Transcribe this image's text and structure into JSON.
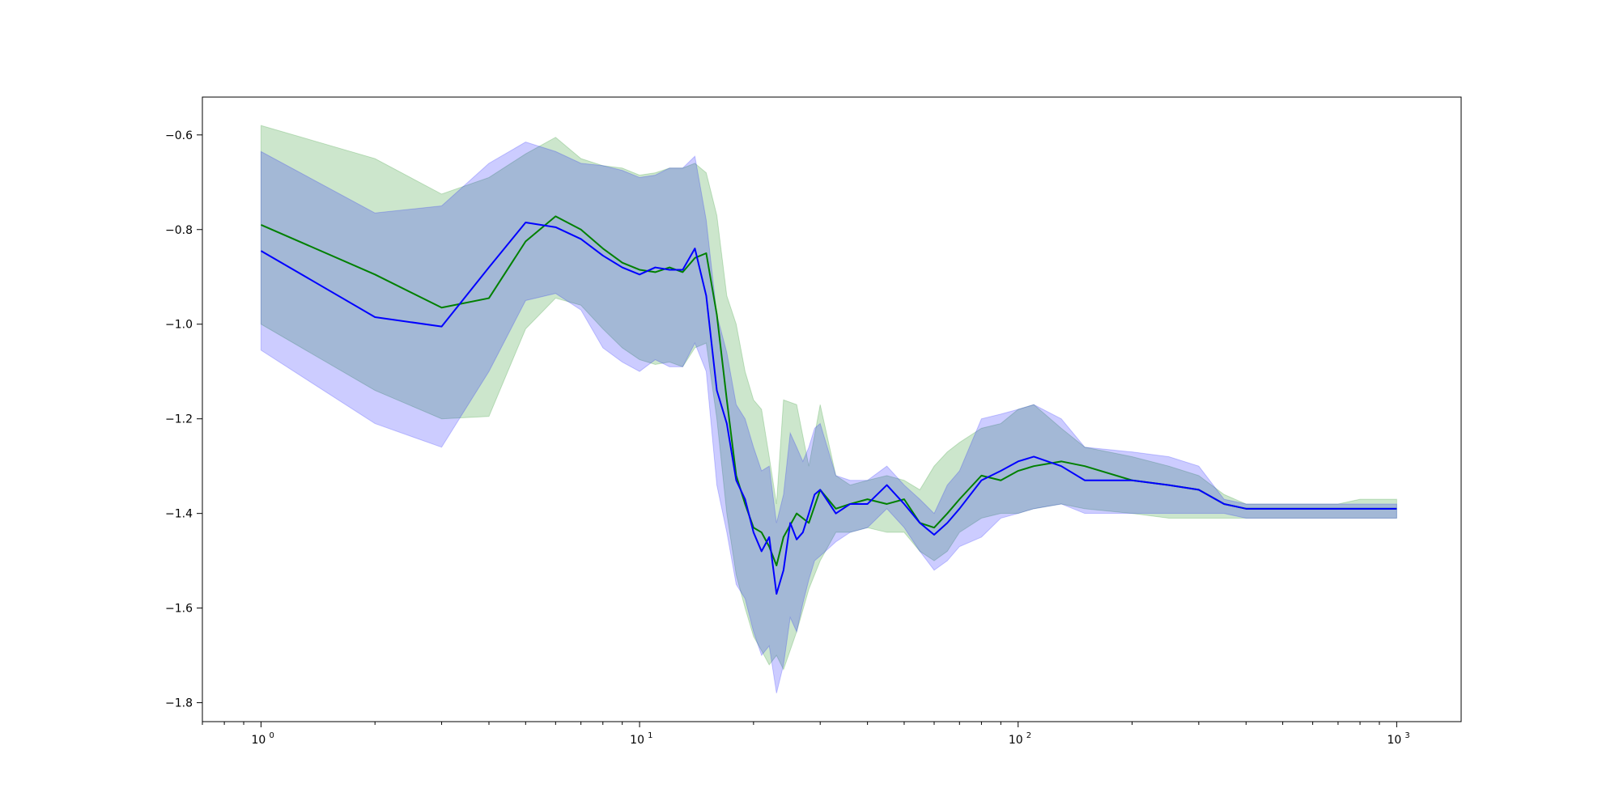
{
  "chart_data": {
    "type": "line",
    "title": "",
    "xlabel": "",
    "ylabel": "",
    "x_scale": "log",
    "xlim": [
      0.7,
      1480
    ],
    "ylim": [
      -1.84,
      -0.52
    ],
    "x_ticks": [
      {
        "value": 1,
        "base": "10",
        "exp": "0"
      },
      {
        "value": 10,
        "base": "10",
        "exp": "1"
      },
      {
        "value": 100,
        "base": "10",
        "exp": "2"
      },
      {
        "value": 1000,
        "base": "10",
        "exp": "3"
      }
    ],
    "y_ticks": [
      {
        "value": -0.6,
        "label": "−0.6"
      },
      {
        "value": -0.8,
        "label": "−0.8"
      },
      {
        "value": -1.0,
        "label": "−1.0"
      },
      {
        "value": -1.2,
        "label": "−1.2"
      },
      {
        "value": -1.4,
        "label": "−1.4"
      },
      {
        "value": -1.6,
        "label": "−1.6"
      },
      {
        "value": -1.8,
        "label": "−1.8"
      }
    ],
    "grid": false,
    "legend": "none",
    "series": [
      {
        "color": "#008000",
        "band_color": "#008000",
        "band_opacity": 0.2,
        "x": [
          1,
          2,
          3,
          4,
          5,
          6,
          7,
          8,
          9,
          10,
          11,
          12,
          13,
          14,
          15,
          16,
          17,
          18,
          19,
          20,
          21,
          22,
          23,
          24,
          26,
          28,
          30,
          33,
          36,
          40,
          45,
          50,
          55,
          60,
          65,
          70,
          80,
          90,
          100,
          110,
          130,
          150,
          200,
          250,
          300,
          350,
          400,
          500,
          600,
          700,
          800,
          900,
          1000
        ],
        "y": [
          -0.79,
          -0.895,
          -0.965,
          -0.945,
          -0.825,
          -0.772,
          -0.8,
          -0.84,
          -0.87,
          -0.885,
          -0.89,
          -0.88,
          -0.89,
          -0.86,
          -0.85,
          -0.98,
          -1.16,
          -1.32,
          -1.38,
          -1.43,
          -1.44,
          -1.47,
          -1.51,
          -1.45,
          -1.4,
          -1.42,
          -1.35,
          -1.39,
          -1.38,
          -1.37,
          -1.38,
          -1.37,
          -1.42,
          -1.43,
          -1.4,
          -1.37,
          -1.32,
          -1.33,
          -1.31,
          -1.3,
          -1.29,
          -1.3,
          -1.33,
          -1.34,
          -1.35,
          -1.38,
          -1.39,
          -1.39,
          -1.39,
          -1.39,
          -1.39,
          -1.39,
          -1.39
        ],
        "upper": [
          -0.58,
          -0.65,
          -0.725,
          -0.69,
          -0.64,
          -0.605,
          -0.65,
          -0.665,
          -0.67,
          -0.685,
          -0.68,
          -0.67,
          -0.67,
          -0.66,
          -0.68,
          -0.77,
          -0.94,
          -1.0,
          -1.1,
          -1.16,
          -1.18,
          -1.28,
          -1.38,
          -1.16,
          -1.17,
          -1.3,
          -1.17,
          -1.32,
          -1.34,
          -1.33,
          -1.32,
          -1.33,
          -1.35,
          -1.3,
          -1.27,
          -1.25,
          -1.22,
          -1.21,
          -1.18,
          -1.17,
          -1.22,
          -1.26,
          -1.28,
          -1.3,
          -1.32,
          -1.36,
          -1.38,
          -1.38,
          -1.38,
          -1.38,
          -1.37,
          -1.37,
          -1.37
        ],
        "lower": [
          -1.0,
          -1.14,
          -1.2,
          -1.195,
          -1.01,
          -0.945,
          -0.96,
          -1.01,
          -1.05,
          -1.075,
          -1.085,
          -1.08,
          -1.09,
          -1.05,
          -1.04,
          -1.2,
          -1.4,
          -1.53,
          -1.6,
          -1.66,
          -1.69,
          -1.72,
          -1.7,
          -1.73,
          -1.65,
          -1.56,
          -1.5,
          -1.44,
          -1.44,
          -1.43,
          -1.44,
          -1.44,
          -1.48,
          -1.5,
          -1.48,
          -1.44,
          -1.41,
          -1.4,
          -1.4,
          -1.39,
          -1.38,
          -1.39,
          -1.4,
          -1.41,
          -1.41,
          -1.41,
          -1.41,
          -1.41,
          -1.41,
          -1.41,
          -1.41,
          -1.41,
          -1.41
        ]
      },
      {
        "color": "#0000ff",
        "band_color": "#0000ff",
        "band_opacity": 0.2,
        "x": [
          1,
          2,
          3,
          4,
          5,
          6,
          7,
          8,
          9,
          10,
          11,
          12,
          13,
          14,
          15,
          16,
          17,
          18,
          19,
          20,
          21,
          22,
          23,
          24,
          25,
          26,
          27,
          28,
          29,
          30,
          33,
          36,
          40,
          45,
          50,
          55,
          60,
          65,
          70,
          80,
          90,
          100,
          110,
          130,
          150,
          200,
          250,
          300,
          350,
          400,
          500,
          600,
          700,
          800,
          900,
          1000
        ],
        "y": [
          -0.845,
          -0.985,
          -1.005,
          -0.88,
          -0.785,
          -0.795,
          -0.82,
          -0.855,
          -0.88,
          -0.895,
          -0.88,
          -0.885,
          -0.885,
          -0.84,
          -0.94,
          -1.14,
          -1.21,
          -1.33,
          -1.37,
          -1.44,
          -1.48,
          -1.45,
          -1.57,
          -1.52,
          -1.42,
          -1.455,
          -1.44,
          -1.4,
          -1.36,
          -1.35,
          -1.4,
          -1.38,
          -1.38,
          -1.34,
          -1.38,
          -1.42,
          -1.445,
          -1.42,
          -1.39,
          -1.33,
          -1.31,
          -1.29,
          -1.28,
          -1.3,
          -1.33,
          -1.33,
          -1.34,
          -1.35,
          -1.38,
          -1.39,
          -1.39,
          -1.39,
          -1.39,
          -1.39,
          -1.39,
          -1.39
        ],
        "upper": [
          -0.635,
          -0.765,
          -0.75,
          -0.66,
          -0.615,
          -0.635,
          -0.66,
          -0.665,
          -0.675,
          -0.69,
          -0.685,
          -0.67,
          -0.67,
          -0.645,
          -0.78,
          -0.98,
          -1.06,
          -1.17,
          -1.2,
          -1.26,
          -1.31,
          -1.3,
          -1.42,
          -1.36,
          -1.23,
          -1.26,
          -1.29,
          -1.26,
          -1.22,
          -1.21,
          -1.32,
          -1.33,
          -1.33,
          -1.3,
          -1.34,
          -1.37,
          -1.4,
          -1.34,
          -1.31,
          -1.2,
          -1.19,
          -1.18,
          -1.17,
          -1.2,
          -1.26,
          -1.27,
          -1.28,
          -1.3,
          -1.37,
          -1.38,
          -1.38,
          -1.38,
          -1.38,
          -1.38,
          -1.38,
          -1.38
        ],
        "lower": [
          -1.055,
          -1.21,
          -1.26,
          -1.1,
          -0.95,
          -0.935,
          -0.97,
          -1.05,
          -1.08,
          -1.1,
          -1.075,
          -1.09,
          -1.09,
          -1.04,
          -1.1,
          -1.34,
          -1.44,
          -1.55,
          -1.58,
          -1.65,
          -1.7,
          -1.68,
          -1.78,
          -1.72,
          -1.62,
          -1.65,
          -1.59,
          -1.54,
          -1.5,
          -1.49,
          -1.46,
          -1.44,
          -1.43,
          -1.39,
          -1.43,
          -1.48,
          -1.52,
          -1.5,
          -1.47,
          -1.45,
          -1.41,
          -1.4,
          -1.39,
          -1.38,
          -1.4,
          -1.4,
          -1.4,
          -1.4,
          -1.4,
          -1.41,
          -1.41,
          -1.41,
          -1.41,
          -1.41,
          -1.41,
          -1.41
        ]
      }
    ]
  }
}
